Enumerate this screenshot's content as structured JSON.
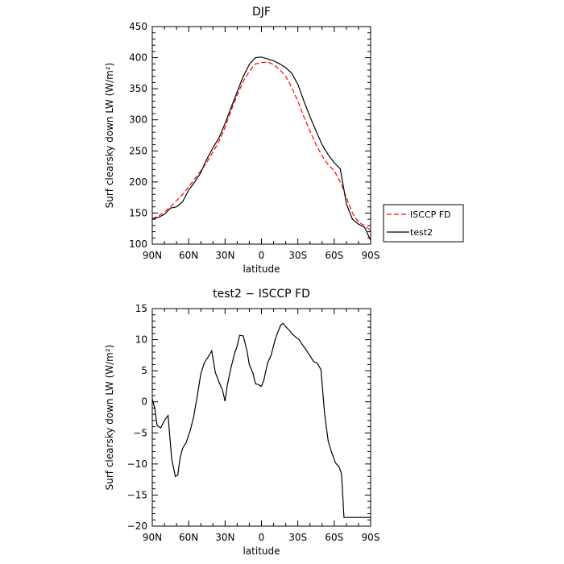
{
  "chart_data": [
    {
      "type": "line",
      "title": "DJF",
      "xlabel": "latitude",
      "ylabel": "Surf clearsky down LW (W/m²)",
      "xlim": [
        90,
        -90
      ],
      "ylim": [
        100,
        450
      ],
      "x_ticks": [
        90,
        60,
        30,
        0,
        -30,
        -60,
        -90
      ],
      "x_tick_labels": [
        "90N",
        "60N",
        "30N",
        "0",
        "30S",
        "60S",
        "90S"
      ],
      "y_ticks": [
        100,
        150,
        200,
        250,
        300,
        350,
        400,
        450
      ],
      "y_tick_labels": [
        "100",
        "150",
        "200",
        "250",
        "300",
        "350",
        "400",
        "450"
      ],
      "grid": false,
      "legend": "outside-right",
      "series": [
        {
          "name": "ISCCP FD",
          "color": "#ff0000",
          "style": "dashed",
          "x": [
            90,
            85,
            80,
            75,
            70,
            65,
            60,
            55,
            50,
            45,
            40,
            35,
            30,
            25,
            20,
            15,
            10,
            5,
            0,
            -5,
            -10,
            -15,
            -20,
            -25,
            -30,
            -35,
            -40,
            -45,
            -50,
            -55,
            -60,
            -65,
            -70,
            -75,
            -80,
            -85,
            -90
          ],
          "values": [
            141,
            145,
            152,
            160,
            170,
            180,
            192,
            205,
            218,
            232,
            248,
            265,
            288,
            315,
            340,
            362,
            378,
            390,
            392,
            393,
            389,
            381,
            370,
            352,
            330,
            305,
            282,
            260,
            242,
            228,
            218,
            200,
            175,
            150,
            135,
            130,
            122
          ]
        },
        {
          "name": "test2",
          "color": "#000000",
          "style": "solid",
          "x": [
            90,
            85,
            80,
            75,
            70,
            65,
            60,
            55,
            50,
            45,
            40,
            35,
            30,
            25,
            20,
            15,
            10,
            5,
            0,
            -5,
            -10,
            -15,
            -20,
            -25,
            -30,
            -35,
            -40,
            -45,
            -50,
            -55,
            -60,
            -65,
            -70,
            -75,
            -80,
            -85,
            -90
          ],
          "values": [
            140,
            143,
            148,
            158,
            160,
            168,
            187,
            200,
            215,
            237,
            255,
            271,
            294,
            320,
            345,
            370,
            389,
            400,
            401,
            398,
            395,
            390,
            384,
            375,
            357,
            330,
            305,
            282,
            260,
            244,
            231,
            221,
            165,
            140,
            132,
            127,
            106
          ]
        }
      ]
    },
    {
      "type": "line",
      "title": "test2 − ISCCP FD",
      "xlabel": "latitude",
      "ylabel": "Surf clearsky down LW (W/m²)",
      "xlim": [
        90,
        -90
      ],
      "ylim": [
        -20,
        15
      ],
      "x_ticks": [
        90,
        60,
        30,
        0,
        -30,
        -60,
        -90
      ],
      "x_tick_labels": [
        "90N",
        "60N",
        "30N",
        "0",
        "30S",
        "60S",
        "90S"
      ],
      "y_ticks": [
        -20,
        -15,
        -10,
        -5,
        0,
        5,
        10,
        15
      ],
      "y_tick_labels": [
        "−20",
        "−15",
        "−10",
        "−5",
        "0",
        "5",
        "10",
        "15"
      ],
      "grid": false,
      "series": [
        {
          "name": "",
          "color": "#000000",
          "style": "solid",
          "x": [
            90,
            88,
            86,
            83,
            80,
            77,
            74,
            71,
            69,
            67,
            65,
            62,
            59,
            56,
            53,
            50,
            47,
            44,
            41,
            38,
            35,
            32,
            30,
            28,
            25,
            22,
            20,
            18,
            15,
            12,
            10,
            7,
            5,
            3,
            0,
            -2,
            -5,
            -8,
            -11,
            -13,
            -16,
            -18,
            -20,
            -23,
            -26,
            -29,
            -31,
            -33,
            -36,
            -40,
            -43,
            -46,
            -49,
            -52,
            -55,
            -58,
            -61,
            -64,
            -66,
            -68,
            -71,
            -75,
            -79,
            -85,
            -88,
            -90
          ],
          "values": [
            0.5,
            -1.0,
            -3.8,
            -4.2,
            -3.0,
            -2.2,
            -9.2,
            -12.0,
            -11.8,
            -9.0,
            -7.5,
            -6.5,
            -4.8,
            -2.5,
            0.8,
            4.5,
            6.3,
            7.2,
            8.2,
            4.7,
            3.2,
            1.8,
            0.1,
            2.8,
            5.6,
            7.9,
            9.0,
            10.7,
            10.6,
            8.3,
            6.0,
            4.6,
            2.9,
            2.8,
            2.5,
            3.5,
            6.2,
            7.5,
            9.8,
            11.0,
            12.4,
            12.6,
            12.1,
            11.5,
            10.8,
            10.3,
            10.0,
            9.4,
            8.6,
            7.4,
            6.5,
            6.2,
            5.2,
            -1.8,
            -6.3,
            -8.2,
            -9.8,
            -10.5,
            -11.6,
            -18.6,
            -18.6,
            -18.6,
            -18.6,
            -18.6,
            -18.6,
            -18.6
          ]
        }
      ]
    }
  ]
}
